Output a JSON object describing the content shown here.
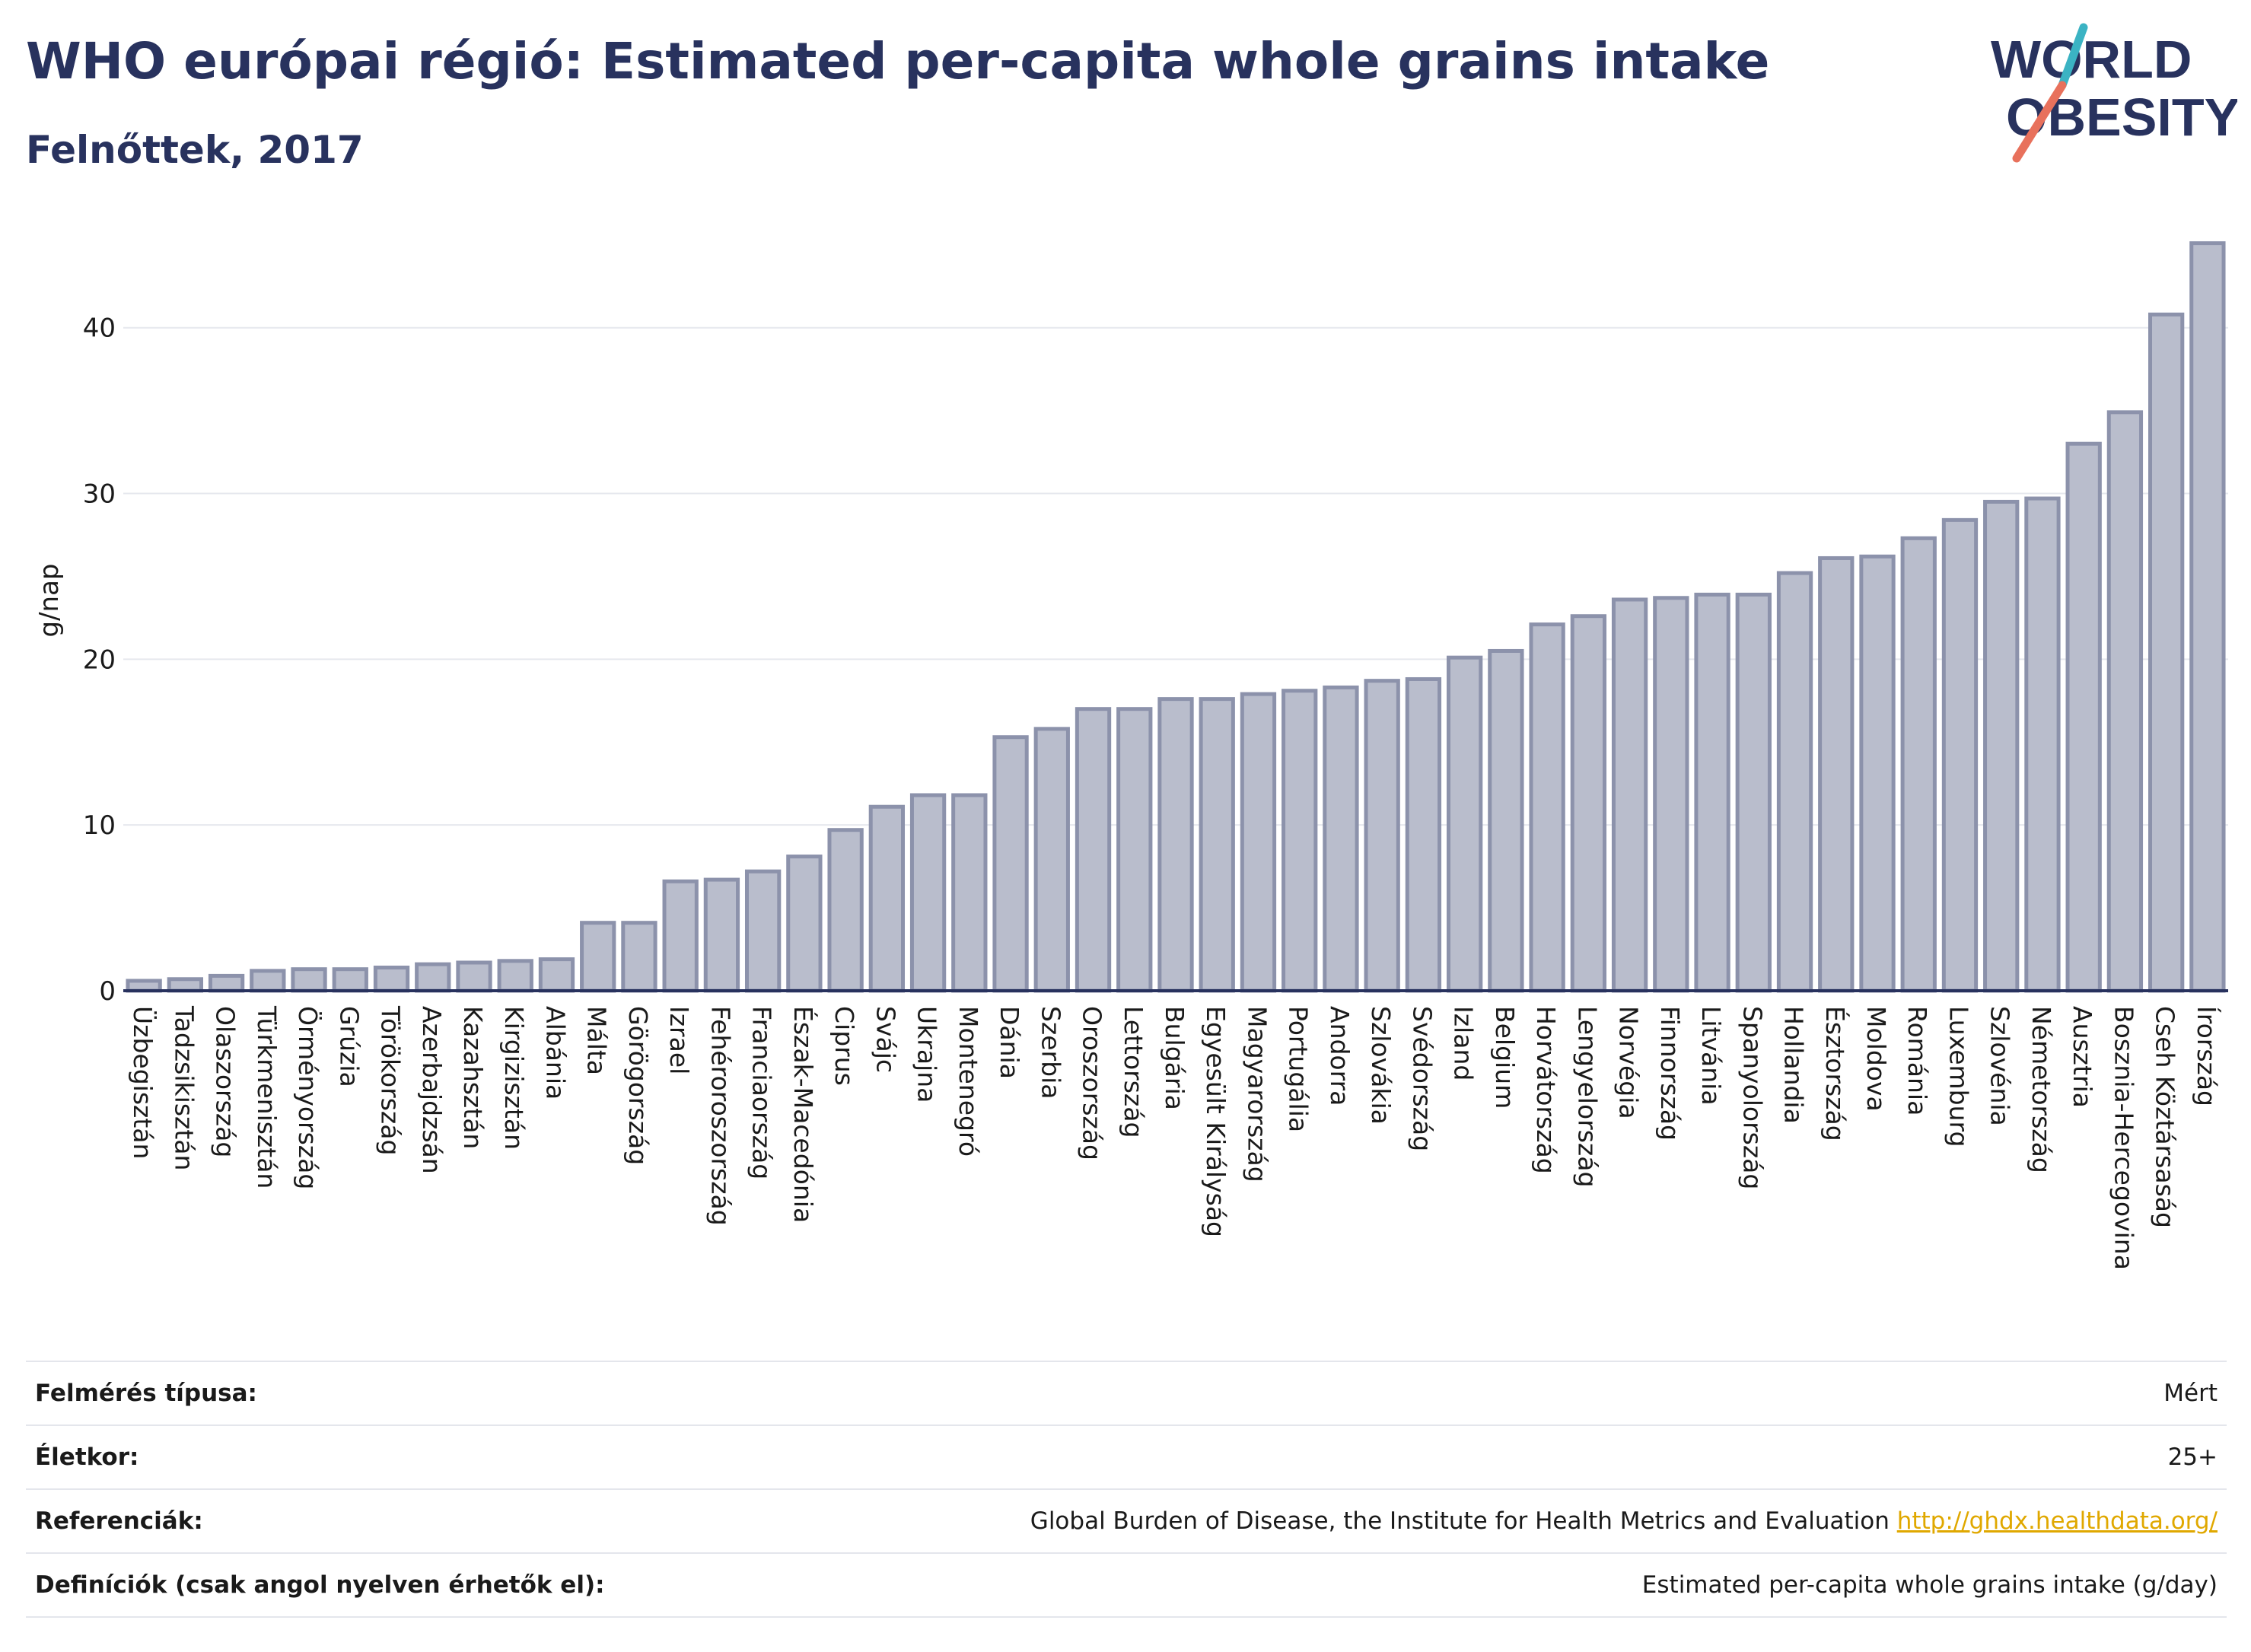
{
  "title": "WHO európai régió: Estimated per-capita whole grains intake",
  "subtitle": "Felnőttek, 2017",
  "logo": {
    "line1": "WORLD",
    "line2": "OBESITY"
  },
  "colors": {
    "bar_fill": "#b9bdcc",
    "bar_stroke": "#8c92ab",
    "text": "#28325e",
    "grid": "#e6e8ee",
    "link": "#e0a800",
    "logo_teal": "#3bb3c3",
    "logo_coral": "#e8715c"
  },
  "chart_data": {
    "type": "bar",
    "ylabel": "g/nap",
    "ylim": [
      0,
      46
    ],
    "yticks": [
      0,
      10,
      20,
      30,
      40
    ],
    "grid": true,
    "categories": [
      "Üzbegisztán",
      "Tadzsikisztán",
      "Olaszország",
      "Türkmenisztán",
      "Örményország",
      "Grúzia",
      "Törökország",
      "Azerbajdzsán",
      "Kazahsztán",
      "Kirgizisztán",
      "Albánia",
      "Málta",
      "Görögország",
      "Izrael",
      "Fehéroroszország",
      "Franciaország",
      "Észak-Macedónia",
      "Ciprus",
      "Svájc",
      "Ukrajna",
      "Montenegró",
      "Dánia",
      "Szerbia",
      "Oroszország",
      "Lettország",
      "Bulgária",
      "Egyesült Királyság",
      "Magyarország",
      "Portugália",
      "Andorra",
      "Szlovákia",
      "Svédország",
      "Izland",
      "Belgium",
      "Horvátország",
      "Lengyelország",
      "Norvégia",
      "Finnország",
      "Litvánia",
      "Spanyolország",
      "Hollandia",
      "Észtország",
      "Moldova",
      "Románia",
      "Luxemburg",
      "Szlovénia",
      "Németország",
      "Ausztria",
      "Bosznia-Hercegovina",
      "Cseh Köztársaság",
      "Írország"
    ],
    "values": [
      0.6,
      0.7,
      0.9,
      1.2,
      1.3,
      1.3,
      1.4,
      1.6,
      1.7,
      1.8,
      1.9,
      4.1,
      4.1,
      6.6,
      6.7,
      7.2,
      8.1,
      9.7,
      11.1,
      11.8,
      11.8,
      15.3,
      15.8,
      17.0,
      17.0,
      17.6,
      17.6,
      17.9,
      18.1,
      18.3,
      18.7,
      18.8,
      20.1,
      20.5,
      22.1,
      22.6,
      23.6,
      23.7,
      23.9,
      23.9,
      25.2,
      26.1,
      26.2,
      27.3,
      28.4,
      29.5,
      29.7,
      33.0,
      34.9,
      40.8,
      45.1
    ]
  },
  "info": [
    {
      "label": "Felmérés típusa:",
      "value": "Mért"
    },
    {
      "label": "Életkor:",
      "value": "25+"
    },
    {
      "label": "Referenciák:",
      "value": "Global Burden of Disease, the Institute for Health Metrics and Evaluation",
      "link": "http://ghdx.healthdata.org/"
    },
    {
      "label": "Definíciók (csak angol nyelven érhetők el):",
      "value": "Estimated per-capita whole grains intake (g/day)"
    }
  ]
}
